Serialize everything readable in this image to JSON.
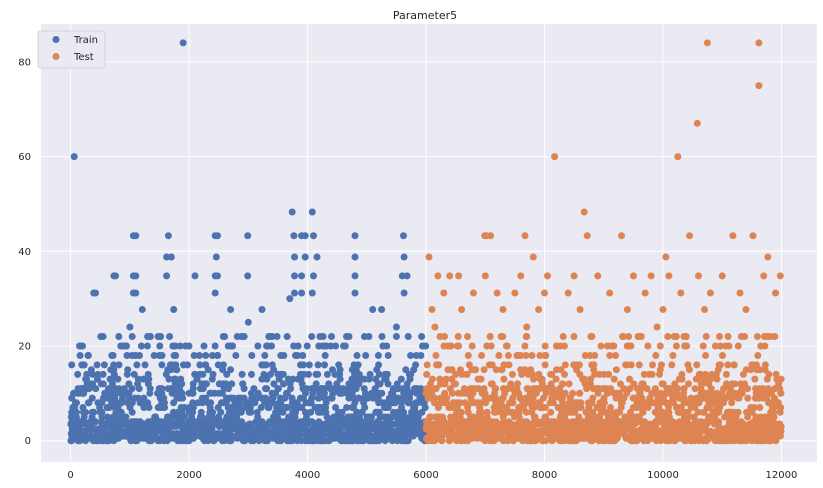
{
  "chart_data": {
    "type": "scatter",
    "title": "Parameter5",
    "xlabel": "",
    "ylabel": "",
    "xlim": [
      -500,
      12600
    ],
    "ylim": [
      -4.5,
      88
    ],
    "xticks": [
      0,
      2000,
      4000,
      6000,
      8000,
      10000,
      12000
    ],
    "yticks": [
      0,
      20,
      40,
      60,
      80
    ],
    "grid": true,
    "legend_position": "top-left",
    "series": [
      {
        "name": "Train",
        "color": "#4c72b0",
        "x_range": [
          0,
          5999
        ],
        "values_description_points": [
          [
            60,
            60
          ],
          [
            1900,
            84
          ],
          [
            3740,
            48.3
          ],
          [
            4080,
            48.3
          ],
          [
            1060,
            43.3
          ],
          [
            1100,
            43.3
          ],
          [
            1650,
            43.3
          ],
          [
            2440,
            43.3
          ],
          [
            2480,
            43.3
          ],
          [
            2990,
            43.3
          ],
          [
            3770,
            43.3
          ],
          [
            3900,
            43.3
          ],
          [
            3960,
            43.3
          ],
          [
            4100,
            43.3
          ],
          [
            4800,
            43.3
          ],
          [
            5620,
            43.3
          ],
          [
            1620,
            38.8
          ],
          [
            1700,
            38.8
          ],
          [
            2460,
            38.8
          ],
          [
            3780,
            38.8
          ],
          [
            3960,
            38.8
          ],
          [
            4160,
            38.8
          ],
          [
            4800,
            38.8
          ],
          [
            5630,
            38.8
          ],
          [
            390,
            31.2
          ],
          [
            420,
            31.2
          ],
          [
            1060,
            31.2
          ],
          [
            1100,
            31.2
          ],
          [
            2440,
            31.2
          ],
          [
            3780,
            31.2
          ],
          [
            3900,
            31.2
          ],
          [
            4080,
            31.2
          ],
          [
            4800,
            31.2
          ],
          [
            5630,
            31.2
          ],
          [
            730,
            34.8
          ],
          [
            760,
            34.8
          ],
          [
            1060,
            34.8
          ],
          [
            1100,
            34.8
          ],
          [
            1620,
            34.8
          ],
          [
            2100,
            34.8
          ],
          [
            2440,
            34.8
          ],
          [
            2480,
            34.8
          ],
          [
            2990,
            34.8
          ],
          [
            3780,
            34.8
          ],
          [
            3900,
            34.8
          ],
          [
            4100,
            34.8
          ],
          [
            4800,
            34.8
          ],
          [
            5600,
            34.8
          ],
          [
            5680,
            34.8
          ],
          [
            1210,
            27.7
          ],
          [
            1740,
            27.7
          ],
          [
            2700,
            27.7
          ],
          [
            3230,
            27.7
          ],
          [
            5100,
            27.7
          ],
          [
            5250,
            27.7
          ],
          [
            2280,
            16
          ],
          [
            2580,
            16
          ],
          [
            3330,
            20
          ],
          [
            3840,
            20
          ],
          [
            4550,
            13
          ],
          [
            5150,
            13
          ],
          [
            5300,
            13
          ],
          [
            5730,
            13
          ],
          [
            5810,
            7
          ],
          [
            5880,
            4
          ],
          [
            200,
            20
          ],
          [
            160,
            18
          ],
          [
            230,
            16
          ],
          [
            120,
            14
          ],
          [
            300,
            12
          ],
          [
            50,
            10
          ],
          [
            100,
            8
          ],
          [
            500,
            6
          ],
          [
            20,
            4
          ],
          [
            80,
            2
          ],
          [
            10,
            0
          ],
          [
            1000,
            24
          ],
          [
            1300,
            22
          ],
          [
            1500,
            18
          ],
          [
            1850,
            20
          ],
          [
            2000,
            10
          ],
          [
            2600,
            22
          ],
          [
            3000,
            25
          ],
          [
            3500,
            14
          ],
          [
            3700,
            30
          ],
          [
            4300,
            20
          ],
          [
            4700,
            22
          ],
          [
            5200,
            12
          ],
          [
            5500,
            24
          ],
          [
            5900,
            2
          ]
        ]
      },
      {
        "name": "Test",
        "color": "#dd8452",
        "x_range": [
          6000,
          11999
        ],
        "values_description_points": [
          [
            10750,
            84
          ],
          [
            11620,
            84
          ],
          [
            11620,
            75
          ],
          [
            10580,
            67
          ],
          [
            8170,
            60
          ],
          [
            10250,
            60
          ],
          [
            8670,
            48.3
          ],
          [
            6990,
            43.3
          ],
          [
            7020,
            43.3
          ],
          [
            7090,
            43.3
          ],
          [
            7670,
            43.3
          ],
          [
            8720,
            43.3
          ],
          [
            9300,
            43.3
          ],
          [
            10450,
            43.3
          ],
          [
            11180,
            43.3
          ],
          [
            11520,
            43.3
          ],
          [
            6050,
            38.8
          ],
          [
            7810,
            38.8
          ],
          [
            10050,
            38.8
          ],
          [
            11770,
            38.8
          ],
          [
            6200,
            34.8
          ],
          [
            6400,
            34.8
          ],
          [
            6550,
            34.8
          ],
          [
            7000,
            34.8
          ],
          [
            7600,
            34.8
          ],
          [
            8050,
            34.8
          ],
          [
            8500,
            34.8
          ],
          [
            8900,
            34.8
          ],
          [
            9500,
            34.8
          ],
          [
            9800,
            34.8
          ],
          [
            10100,
            34.8
          ],
          [
            10600,
            34.8
          ],
          [
            11000,
            34.8
          ],
          [
            11700,
            34.8
          ],
          [
            11980,
            34.8
          ],
          [
            6300,
            31.2
          ],
          [
            6800,
            31.2
          ],
          [
            7200,
            31.2
          ],
          [
            7500,
            31.2
          ],
          [
            8000,
            31.2
          ],
          [
            8400,
            31.2
          ],
          [
            9100,
            31.2
          ],
          [
            9700,
            31.2
          ],
          [
            10300,
            31.2
          ],
          [
            10800,
            31.2
          ],
          [
            11300,
            31.2
          ],
          [
            11900,
            31.2
          ],
          [
            6100,
            27.7
          ],
          [
            6600,
            27.7
          ],
          [
            7300,
            27.7
          ],
          [
            7900,
            27.7
          ],
          [
            8600,
            27.7
          ],
          [
            9400,
            27.7
          ],
          [
            10000,
            27.7
          ],
          [
            10700,
            27.7
          ],
          [
            11400,
            27.7
          ],
          [
            6150,
            24
          ],
          [
            6700,
            22
          ],
          [
            7100,
            20
          ],
          [
            7700,
            24
          ],
          [
            8200,
            20
          ],
          [
            8800,
            22
          ],
          [
            9200,
            18
          ],
          [
            9900,
            24
          ],
          [
            10400,
            20
          ],
          [
            11100,
            22
          ],
          [
            11600,
            18
          ],
          [
            6020,
            16
          ],
          [
            6500,
            14
          ],
          [
            7400,
            16
          ],
          [
            8300,
            12
          ],
          [
            9000,
            14
          ],
          [
            9600,
            16
          ],
          [
            10200,
            12
          ],
          [
            10900,
            14
          ],
          [
            11500,
            16
          ],
          [
            11950,
            12
          ],
          [
            6000,
            10
          ],
          [
            6250,
            8
          ],
          [
            6900,
            6
          ],
          [
            7800,
            8
          ],
          [
            8700,
            6
          ],
          [
            9300,
            8
          ],
          [
            10100,
            6
          ],
          [
            10500,
            8
          ],
          [
            11200,
            6
          ],
          [
            11800,
            8
          ],
          [
            6010,
            4
          ],
          [
            6400,
            2
          ],
          [
            7000,
            0
          ],
          [
            8000,
            2
          ],
          [
            9000,
            0
          ],
          [
            10000,
            2
          ],
          [
            11000,
            0
          ],
          [
            11990,
            2
          ]
        ]
      }
    ]
  }
}
